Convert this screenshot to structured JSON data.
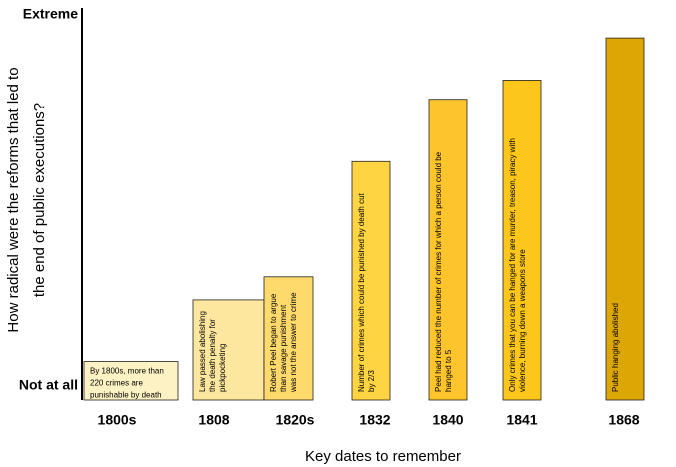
{
  "chart_data": {
    "type": "bar",
    "categories": [
      "1800s",
      "1808",
      "1820s",
      "1832",
      "1840",
      "1841",
      "1868"
    ],
    "values": [
      10,
      26,
      32,
      62,
      78,
      83,
      94
    ],
    "colors": [
      "#fdf2c4",
      "#fde79f",
      "#fed96b",
      "#fed442",
      "#fdc52b",
      "#fcc61a",
      "#dca605"
    ],
    "notes": [
      [
        "By 1800s, more than",
        "220 crimes are",
        "punishable by death"
      ],
      [
        "Law passed abolishing",
        "the death penalty for",
        "pickpocketing"
      ],
      [
        "Robert Peel began to argue",
        "than savage punishment",
        "was not the answer to crime"
      ],
      [
        "Number of crimes which could be punished by death cut",
        "by 2/3"
      ],
      [
        "Peel had reduced the number of crimes for which a person could be",
        "hanged to 5"
      ],
      [
        "Only crimes that you can be hanged for are murder, treason, piracy with",
        "violence, burning down a weapons store"
      ],
      [
        "Public hanging abolished"
      ]
    ],
    "ylim": [
      0,
      100
    ],
    "yticks": [
      {
        "value": 0,
        "label": "Not at all"
      },
      {
        "value": 100,
        "label": "Extreme"
      }
    ],
    "ylabel": [
      "How radical were the reforms that led to",
      "the end of public executions?"
    ],
    "xlabel": "Key dates to remember"
  }
}
